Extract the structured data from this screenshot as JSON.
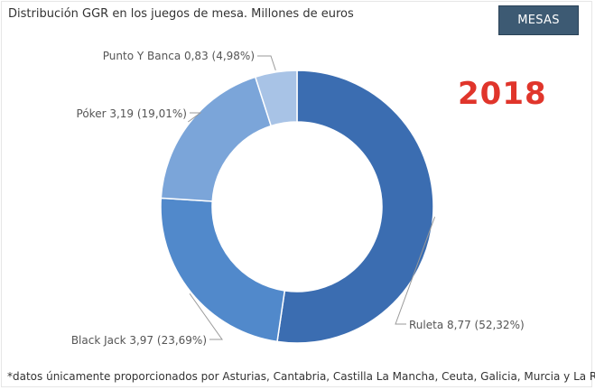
{
  "header": {
    "title": "Distribución GGR en los juegos de mesa. Millones de euros",
    "button_label": "MESAS",
    "year": "2018"
  },
  "footnote": "*datos únicamente proporcionados por Asturias, Cantabria, Castilla La Mancha, Ceuta, Galicia, Murcia y La Rioja",
  "chart_data": {
    "type": "pie",
    "donut": true,
    "title": "Distribución GGR en los juegos de mesa. Millones de euros",
    "unit": "Millones de euros",
    "slices": [
      {
        "name": "Ruleta",
        "value": 8.77,
        "percent": 52.32,
        "label": "Ruleta 8,77 (52,32%)",
        "color": "#3b6db1"
      },
      {
        "name": "Black Jack",
        "value": 3.97,
        "percent": 23.69,
        "label": "Black Jack 3,97 (23,69%)",
        "color": "#5189cb"
      },
      {
        "name": "Póker",
        "value": 3.19,
        "percent": 19.01,
        "label": "Póker 3,19 (19,01%)",
        "color": "#7ba5d9"
      },
      {
        "name": "Punto Y Banca",
        "value": 0.83,
        "percent": 4.98,
        "label": "Punto Y Banca 0,83 (4,98%)",
        "color": "#a8c3e6"
      }
    ]
  }
}
